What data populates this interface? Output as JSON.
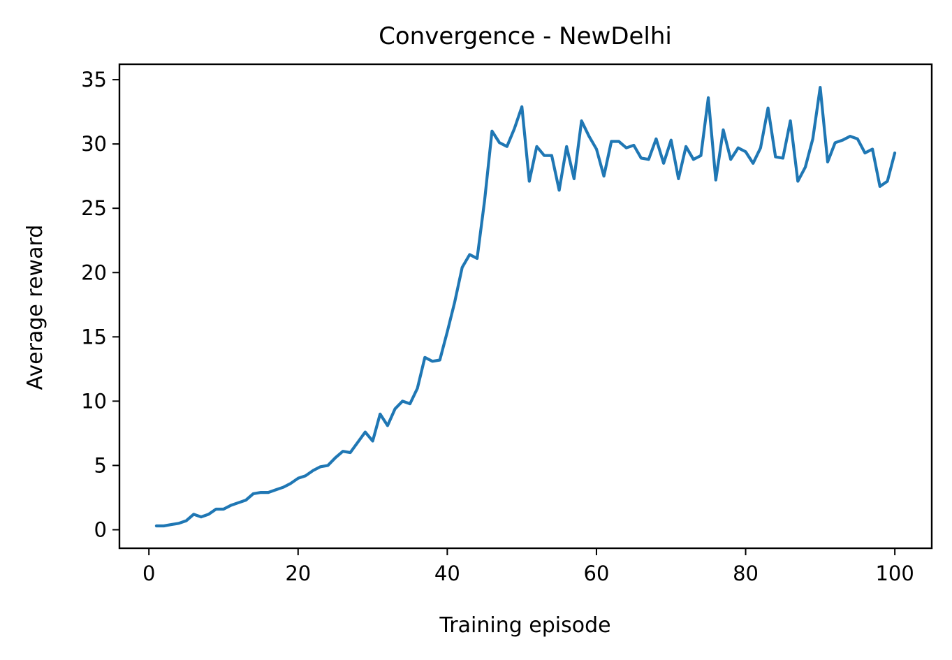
{
  "chart_data": {
    "type": "line",
    "title": "Convergence - NewDelhi",
    "xlabel": "Training episode",
    "ylabel": "Average reward",
    "xlim": [
      -3.95,
      104.95
    ],
    "ylim": [
      -1.44,
      36.2
    ],
    "xticks": [
      0,
      20,
      40,
      60,
      80,
      100
    ],
    "yticks": [
      0,
      5,
      10,
      15,
      20,
      25,
      30,
      35
    ],
    "grid": false,
    "legend": "none",
    "series": [
      {
        "color": "#1f77b4",
        "x": [
          1,
          2,
          3,
          4,
          5,
          6,
          7,
          8,
          9,
          10,
          11,
          12,
          13,
          14,
          15,
          16,
          17,
          18,
          19,
          20,
          21,
          22,
          23,
          24,
          25,
          26,
          27,
          28,
          29,
          30,
          31,
          32,
          33,
          34,
          35,
          36,
          37,
          38,
          39,
          40,
          41,
          42,
          43,
          44,
          45,
          46,
          47,
          48,
          49,
          50,
          51,
          52,
          53,
          54,
          55,
          56,
          57,
          58,
          59,
          60,
          61,
          62,
          63,
          64,
          65,
          66,
          67,
          68,
          69,
          70,
          71,
          72,
          73,
          74,
          75,
          76,
          77,
          78,
          79,
          80,
          81,
          82,
          83,
          84,
          85,
          86,
          87,
          88,
          89,
          90,
          91,
          92,
          93,
          94,
          95,
          96,
          97,
          98,
          99,
          100
        ],
        "values": [
          0.3,
          0.3,
          0.4,
          0.5,
          0.7,
          1.2,
          1.0,
          1.2,
          1.6,
          1.6,
          1.9,
          2.1,
          2.3,
          2.8,
          2.9,
          2.9,
          3.1,
          3.3,
          3.6,
          4.0,
          4.2,
          4.6,
          4.9,
          5.0,
          5.6,
          6.1,
          6.0,
          6.8,
          7.6,
          6.9,
          9.0,
          8.1,
          9.4,
          10.0,
          9.8,
          11.0,
          13.4,
          13.1,
          13.2,
          15.4,
          17.7,
          20.4,
          21.4,
          21.1,
          25.6,
          31.0,
          30.1,
          29.8,
          31.2,
          32.9,
          27.1,
          29.8,
          29.1,
          29.1,
          26.4,
          29.8,
          27.3,
          31.8,
          30.6,
          29.6,
          27.5,
          30.2,
          30.2,
          29.7,
          29.9,
          28.9,
          28.8,
          30.4,
          28.5,
          30.3,
          27.3,
          29.8,
          28.8,
          29.1,
          33.6,
          27.2,
          31.1,
          28.8,
          29.7,
          29.4,
          28.5,
          29.7,
          32.8,
          29.0,
          28.9,
          31.8,
          27.1,
          28.2,
          30.4,
          34.4,
          28.6,
          30.1,
          30.3,
          30.6,
          30.4,
          29.3,
          29.6,
          26.7,
          27.1,
          29.3
        ]
      }
    ]
  }
}
